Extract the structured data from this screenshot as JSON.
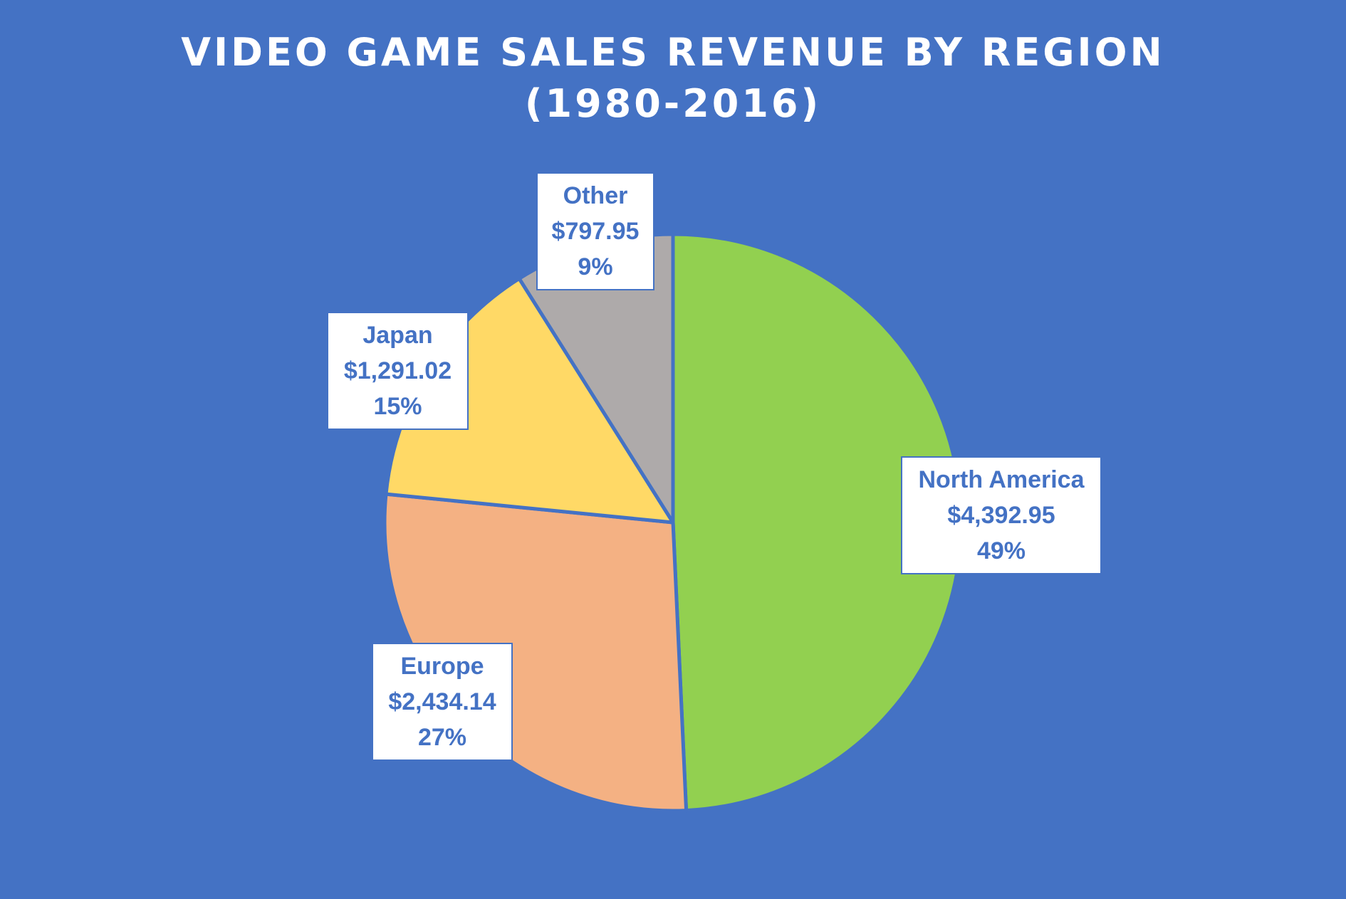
{
  "colors": {
    "background": "#4472C4",
    "title": "#FFFFFF",
    "label_text": "#4472C4",
    "label_box": "#FFFFFF",
    "slice_border": "#4472C4"
  },
  "chart_data": {
    "type": "pie",
    "title": "VIDEO GAME SALES REVENUE BY REGION",
    "subtitle": "(1980-2016)",
    "legend": "none",
    "slices": [
      {
        "label": "North America",
        "value": 4392.95,
        "value_text": "$4,392.95",
        "percent_text": "49%",
        "color": "#92D050"
      },
      {
        "label": "Europe",
        "value": 2434.14,
        "value_text": "$2,434.14",
        "percent_text": "27%",
        "color": "#F4B183"
      },
      {
        "label": "Japan",
        "value": 1291.02,
        "value_text": "$1,291.02",
        "percent_text": "15%",
        "color": "#FFD966"
      },
      {
        "label": "Other",
        "value": 797.95,
        "value_text": "$797.95",
        "percent_text": "9%",
        "color": "#AEAAAA"
      }
    ]
  }
}
